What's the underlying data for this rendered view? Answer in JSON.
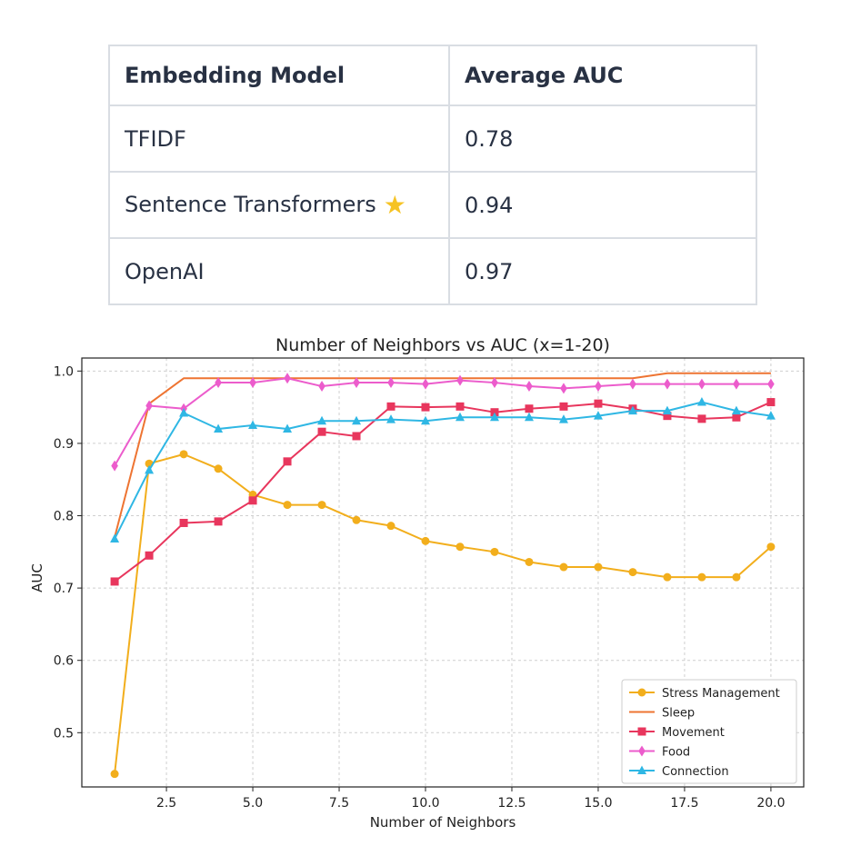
{
  "table": {
    "headers": [
      "Embedding Model",
      "Average AUC"
    ],
    "rows": [
      {
        "model": "TFIDF",
        "auc": "0.78"
      },
      {
        "model": "Sentence Transformers",
        "auc": "0.94",
        "emoji": "★"
      },
      {
        "model": "OpenAI",
        "auc": "0.97"
      }
    ]
  },
  "chart_data": {
    "type": "line",
    "title": "Number of Neighbors vs AUC (x=1-20)",
    "xlabel": "Number of Neighbors",
    "ylabel": "AUC",
    "xlim": [
      0.05,
      20.95
    ],
    "ylim": [
      0.425,
      1.018
    ],
    "xticks": [
      2.5,
      5.0,
      7.5,
      10.0,
      12.5,
      15.0,
      17.5,
      20.0
    ],
    "yticks": [
      0.5,
      0.6,
      0.7,
      0.8,
      0.9,
      1.0
    ],
    "grid": true,
    "legend_position": "lower-right",
    "x": [
      1,
      2,
      3,
      4,
      5,
      6,
      7,
      8,
      9,
      10,
      11,
      12,
      13,
      14,
      15,
      16,
      17,
      18,
      19,
      20
    ],
    "series": [
      {
        "name": "Stress Management",
        "color": "#f2ae1c",
        "marker": "circle",
        "values": [
          0.443,
          0.872,
          0.885,
          0.865,
          0.829,
          0.815,
          0.815,
          0.794,
          0.786,
          0.765,
          0.757,
          0.75,
          0.736,
          0.729,
          0.729,
          0.722,
          0.715,
          0.715,
          0.715,
          0.757
        ]
      },
      {
        "name": "Sleep",
        "color": "#ee7432",
        "marker": "none",
        "values": [
          0.77,
          0.955,
          0.99,
          0.99,
          0.99,
          0.99,
          0.99,
          0.99,
          0.99,
          0.99,
          0.99,
          0.99,
          0.99,
          0.99,
          0.99,
          0.99,
          0.997,
          0.997,
          0.997,
          0.997
        ]
      },
      {
        "name": "Movement",
        "color": "#e8365d",
        "marker": "square",
        "values": [
          0.709,
          0.745,
          0.79,
          0.792,
          0.821,
          0.875,
          0.916,
          0.91,
          0.951,
          0.95,
          0.951,
          0.943,
          0.948,
          0.951,
          0.955,
          0.948,
          0.938,
          0.934,
          0.936,
          0.957
        ]
      },
      {
        "name": "Food",
        "color": "#ec5ccc",
        "marker": "diamond",
        "values": [
          0.869,
          0.952,
          0.948,
          0.984,
          0.984,
          0.99,
          0.979,
          0.984,
          0.984,
          0.982,
          0.987,
          0.984,
          0.979,
          0.976,
          0.979,
          0.982,
          0.982,
          0.982,
          0.982,
          0.982
        ]
      },
      {
        "name": "Connection",
        "color": "#2fb7e4",
        "marker": "triangle",
        "values": [
          0.768,
          0.863,
          0.942,
          0.92,
          0.925,
          0.92,
          0.931,
          0.931,
          0.933,
          0.931,
          0.936,
          0.936,
          0.936,
          0.933,
          0.938,
          0.945,
          0.945,
          0.957,
          0.945,
          0.938
        ]
      }
    ]
  }
}
